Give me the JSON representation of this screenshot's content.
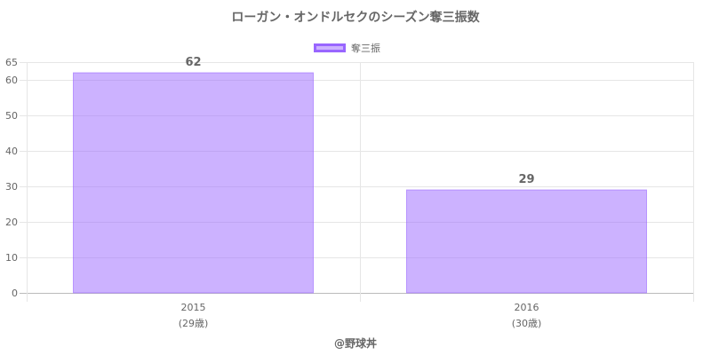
{
  "chart_data": {
    "type": "bar",
    "title": "ローガン・オンドルセクのシーズン奪三振数",
    "categories": [
      "2015",
      "2016"
    ],
    "category_sublabels": [
      "(29歳)",
      "(30歳)"
    ],
    "series": [
      {
        "name": "奪三振",
        "values": [
          62,
          29
        ],
        "color": "#9966ff"
      }
    ],
    "ylim": [
      0,
      65
    ],
    "yticks": [
      0,
      10,
      20,
      30,
      40,
      50,
      60,
      65
    ],
    "grid": true,
    "legend": "top-center",
    "data_labels": [
      "62",
      "29"
    ]
  },
  "footer": "@野球丼"
}
